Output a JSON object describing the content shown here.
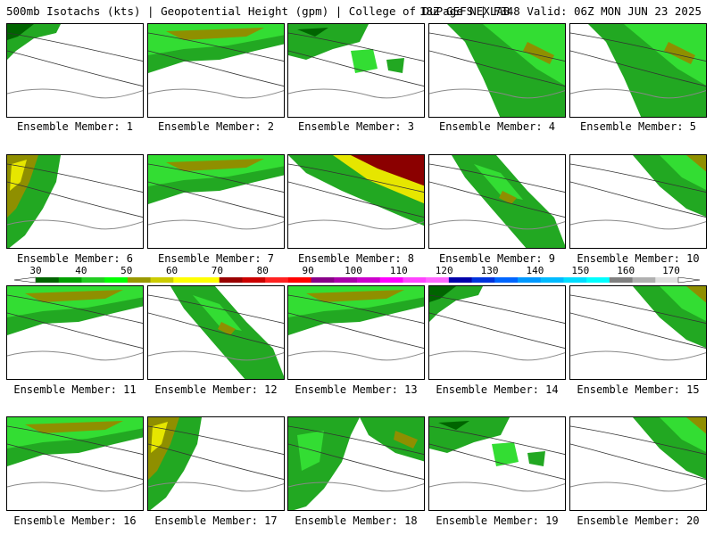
{
  "header": {
    "left": "500mb Isotachs (kts) | Geopotential Height (gpm) | College of DuPage NEXLAB",
    "right": "18Z GEFS | F348 Valid: 06Z MON JUN 23 2025"
  },
  "panel_label_prefix": "Ensemble Member: ",
  "members": [
    {
      "label": "Ensemble Member: 1",
      "jet": "nw-corner",
      "max_kts": 40
    },
    {
      "label": "Ensemble Member: 2",
      "jet": "top-band",
      "max_kts": 60
    },
    {
      "label": "Ensemble Member: 3",
      "jet": "scattered-top",
      "max_kts": 50
    },
    {
      "label": "Ensemble Member: 4",
      "jet": "diagonal-east",
      "max_kts": 60
    },
    {
      "label": "Ensemble Member: 5",
      "jet": "diagonal-east",
      "max_kts": 60
    },
    {
      "label": "Ensemble Member: 6",
      "jet": "west-edge",
      "max_kts": 70
    },
    {
      "label": "Ensemble Member: 7",
      "jet": "top-band",
      "max_kts": 70
    },
    {
      "label": "Ensemble Member: 8",
      "jet": "strong-diagonal",
      "max_kts": 80
    },
    {
      "label": "Ensemble Member: 9",
      "jet": "diagonal-center",
      "max_kts": 60
    },
    {
      "label": "Ensemble Member: 10",
      "jet": "ne-corner",
      "max_kts": 50
    },
    {
      "label": "Ensemble Member: 11",
      "jet": "top-band",
      "max_kts": 60
    },
    {
      "label": "Ensemble Member: 12",
      "jet": "diagonal-center",
      "max_kts": 60
    },
    {
      "label": "Ensemble Member: 13",
      "jet": "top-band",
      "max_kts": 50
    },
    {
      "label": "Ensemble Member: 14",
      "jet": "nw-corner",
      "max_kts": 50
    },
    {
      "label": "Ensemble Member: 15",
      "jet": "ne-corner",
      "max_kts": 50
    },
    {
      "label": "Ensemble Member: 16",
      "jet": "top-band",
      "max_kts": 50
    },
    {
      "label": "Ensemble Member: 17",
      "jet": "west-edge",
      "max_kts": 80
    },
    {
      "label": "Ensemble Member: 18",
      "jet": "scattered-west",
      "max_kts": 50
    },
    {
      "label": "Ensemble Member: 19",
      "jet": "scattered-top",
      "max_kts": 60
    },
    {
      "label": "Ensemble Member: 20",
      "jet": "ne-corner",
      "max_kts": 60
    }
  ],
  "colorbar": {
    "ticks": [
      "30",
      "40",
      "50",
      "60",
      "70",
      "80",
      "90",
      "100",
      "110",
      "120",
      "130",
      "140",
      "150",
      "160",
      "170"
    ],
    "colors": [
      "#006400",
      "#00a000",
      "#22cc22",
      "#00ff00",
      "#999900",
      "#cccc00",
      "#ffff00",
      "#ffff00",
      "#990000",
      "#cc0000",
      "#ff2222",
      "#ff0000",
      "#880088",
      "#aa00aa",
      "#cc00cc",
      "#ff00ff",
      "#ff44ff",
      "#ff66ff",
      "#0000aa",
      "#0033dd",
      "#0066ff",
      "#0099ff",
      "#00bbff",
      "#00ddff",
      "#00ffff",
      "#808080",
      "#b0b0b0",
      "#e0e0e0"
    ]
  }
}
